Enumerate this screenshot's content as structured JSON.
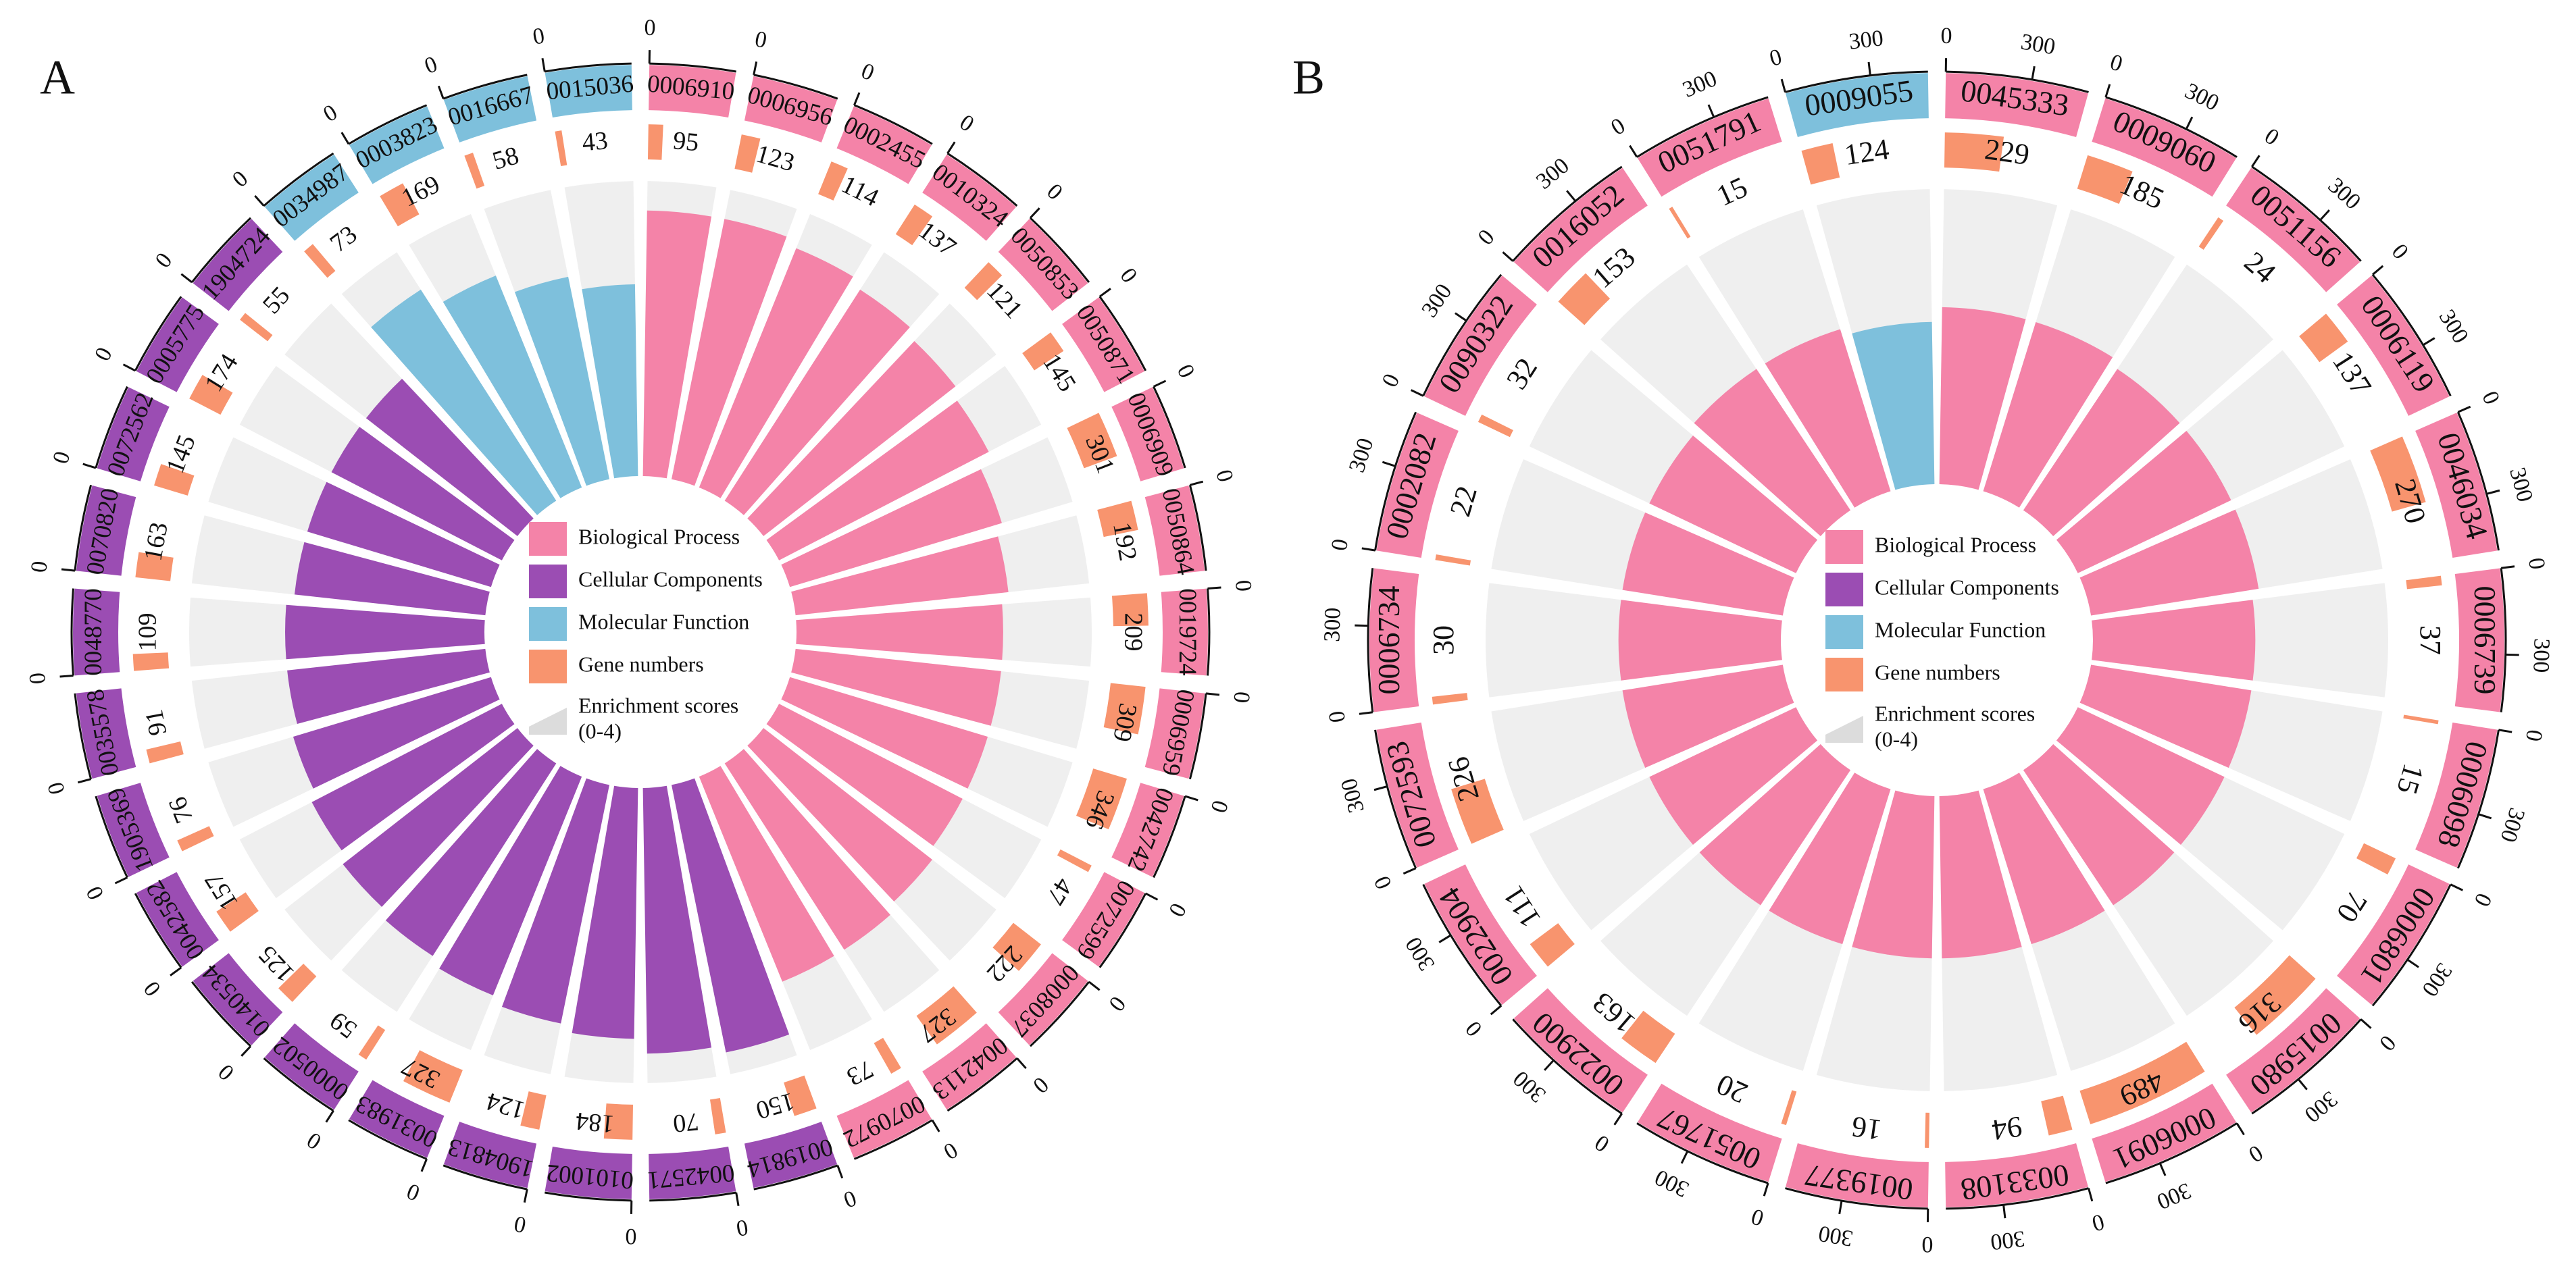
{
  "chart_data": [
    {
      "type": "circular_bar",
      "panel_label": "A",
      "groups": [
        {
          "name": "Biological Process",
          "color": "#f483a8",
          "categories": [
            "0006910",
            "0006956",
            "0002455",
            "0010324",
            "0050853",
            "0050871",
            "0006909",
            "0050864",
            "0019724",
            "0006959",
            "0042742",
            "0072599",
            "0008037",
            "0042113",
            "0070972"
          ],
          "gene_numbers": [
            95,
            123,
            114,
            137,
            121,
            145,
            301,
            192,
            209,
            309,
            346,
            47,
            222,
            327,
            73
          ],
          "scores": [
            3.6,
            3.6,
            3.5,
            3.4,
            3.3,
            3.2,
            3.0,
            2.9,
            2.8,
            2.8,
            2.8,
            2.8,
            2.9,
            3.0,
            3.0
          ]
        },
        {
          "name": "Cellular Components",
          "color": "#9b4db3",
          "categories": [
            "0019814",
            "0042571",
            "0101002",
            "1904813",
            "0031983",
            "0000502",
            "0140534",
            "0042582",
            "1905369",
            "0035578",
            "0048770",
            "0070820",
            "0072562",
            "0005775",
            "1904724"
          ],
          "gene_numbers": [
            150,
            70,
            184,
            124,
            327,
            59,
            125,
            157,
            76,
            91,
            109,
            163,
            145,
            174,
            55
          ],
          "scores": [
            3.7,
            3.6,
            3.4,
            3.3,
            3.2,
            3.1,
            3.0,
            2.9,
            2.8,
            2.7,
            2.7,
            2.6,
            2.6,
            2.6,
            2.6
          ]
        },
        {
          "name": "Molecular Function",
          "color": "#7ec0dc",
          "categories": [
            "0034987",
            "0003823",
            "0016667",
            "0015036"
          ],
          "gene_numbers": [
            73,
            169,
            58,
            43
          ],
          "scores": [
            3.4,
            3.1,
            2.8,
            2.6
          ]
        }
      ],
      "gene_legend": {
        "name": "Gene numbers",
        "color": "#f8946e"
      },
      "enrichment": {
        "name": "Enrichment scores",
        "range_label": "(0-4)",
        "color": "#dcdcdc"
      },
      "score_lim": [
        0,
        4
      ],
      "outer_lim": [
        0,
        500
      ],
      "outer_ticks": [
        0
      ]
    },
    {
      "type": "circular_bar",
      "panel_label": "B",
      "groups": [
        {
          "name": "Biological Process",
          "color": "#f483a8",
          "categories": [
            "0045333",
            "0009060",
            "0051156",
            "0006119",
            "0046034",
            "0006739",
            "0006098",
            "0006801",
            "0015980",
            "0006091",
            "0033108",
            "0019377",
            "0051767",
            "0022900",
            "0022904",
            "0072593",
            "0006734",
            "0002082",
            "0090322",
            "0016052",
            "0051791"
          ],
          "gene_numbers": [
            229,
            185,
            24,
            137,
            270,
            37,
            15,
            70,
            316,
            489,
            94,
            16,
            20,
            163,
            111,
            226,
            30,
            22,
            32,
            153,
            15
          ],
          "scores": [
            2.4,
            2.4,
            2.3,
            2.3,
            2.3,
            2.2,
            2.2,
            2.2,
            2.2,
            2.2,
            2.2,
            2.2,
            2.2,
            2.2,
            2.2,
            2.2,
            2.2,
            2.2,
            2.2,
            2.3,
            2.3
          ]
        },
        {
          "name": "Cellular Components",
          "color": "#9b4db3",
          "categories": [],
          "gene_numbers": [],
          "scores": []
        },
        {
          "name": "Molecular Function",
          "color": "#7ec0dc",
          "categories": [
            "0009055"
          ],
          "gene_numbers": [
            124
          ],
          "scores": [
            2.2
          ]
        }
      ],
      "gene_legend": {
        "name": "Gene numbers",
        "color": "#f8946e"
      },
      "enrichment": {
        "name": "Enrichment scores",
        "range_label": "(0-4)",
        "color": "#dcdcdc"
      },
      "score_lim": [
        0,
        4
      ],
      "outer_lim": [
        0,
        500
      ],
      "outer_ticks": [
        0,
        300
      ]
    }
  ]
}
